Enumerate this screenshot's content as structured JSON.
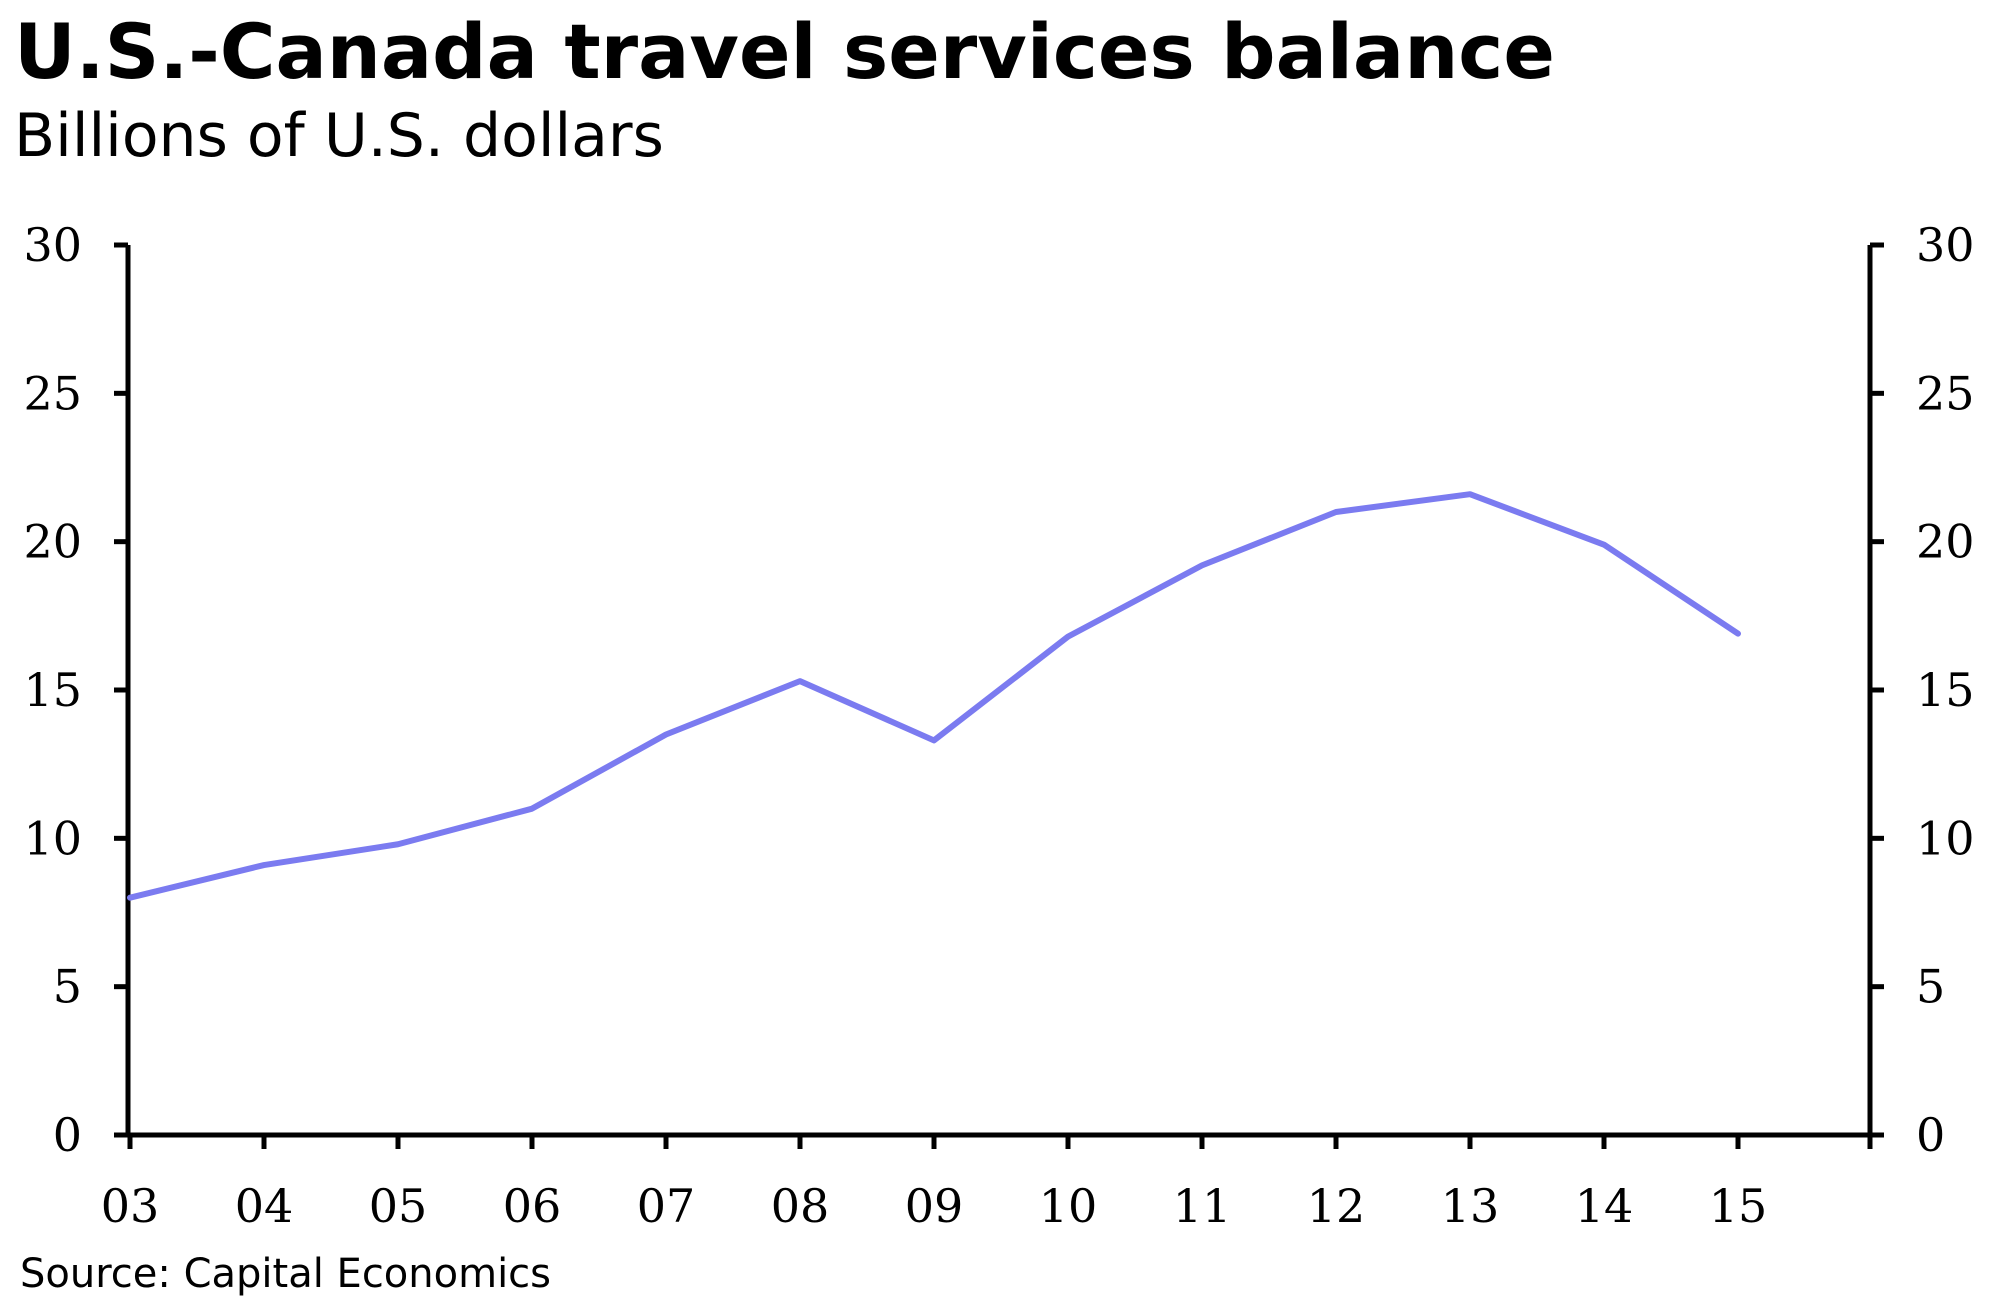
{
  "title": "U.S.-Canada travel services balance",
  "subtitle": "Billions of U.S. dollars",
  "source": "Source: Capital Economics",
  "chart_data": {
    "type": "line",
    "title": "U.S.-Canada travel services balance",
    "subtitle": "Billions of U.S. dollars",
    "xlabel": "",
    "ylabel": "",
    "categories": [
      "03",
      "04",
      "05",
      "06",
      "07",
      "08",
      "09",
      "10",
      "11",
      "12",
      "13",
      "14",
      "15"
    ],
    "series": [
      {
        "values": [
          8.0,
          9.1,
          9.8,
          11.0,
          13.5,
          15.3,
          13.3,
          16.8,
          19.2,
          21.0,
          21.6,
          19.9,
          16.9
        ],
        "color": "#7b7bf0"
      }
    ],
    "ylim": [
      0,
      30
    ],
    "yticks": [
      0,
      5,
      10,
      15,
      20,
      25,
      30
    ],
    "secondary_y_axis": true,
    "grid": false,
    "legend": "none"
  }
}
